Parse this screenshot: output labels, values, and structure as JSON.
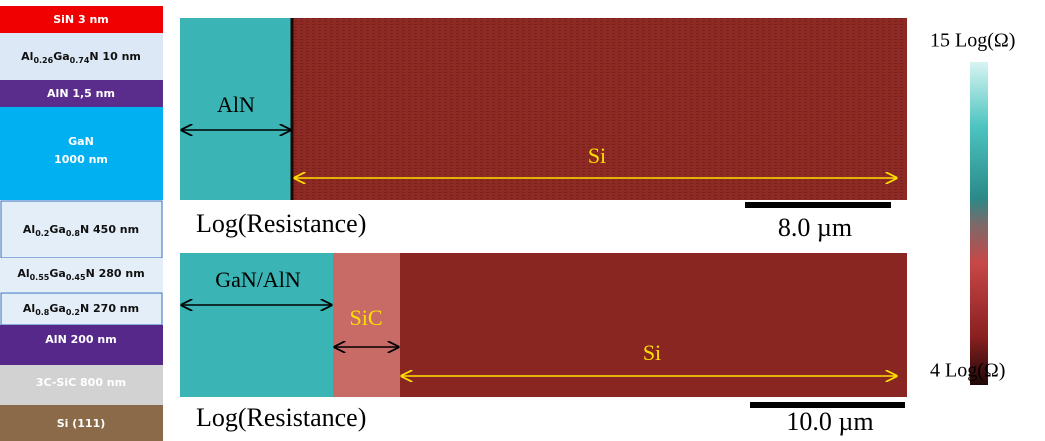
{
  "layers": [
    {
      "label": [
        "SiN 3 nm"
      ]
    },
    {
      "label": [
        "Al",
        "0.26",
        "Ga",
        "0.74",
        "N 10 nm"
      ]
    },
    {
      "label": [
        "AlN 1,5 nm"
      ]
    },
    {
      "label": [
        "GaN",
        "1000 nm"
      ]
    },
    {
      "label": [
        "Al",
        "0.2",
        "Ga",
        "0.8",
        "N 450 nm"
      ]
    },
    {
      "label": [
        "Al",
        "0.55",
        "Ga",
        "0.45",
        "N 280 nm"
      ]
    },
    {
      "label": [
        "Al",
        "0.8",
        "Ga",
        "0.2",
        "N 270 nm"
      ]
    },
    {
      "label": [
        "AlN 200 nm"
      ]
    },
    {
      "label": [
        "3C-SiC 800 nm"
      ]
    },
    {
      "label": [
        "Si (111)"
      ]
    }
  ],
  "maps": [
    {
      "regions": [
        "AlN",
        "Si"
      ],
      "caption": "Log(Resistance)",
      "scale_bar": "8.0 µm"
    },
    {
      "regions": [
        "GaN/AlN",
        "SiC",
        "Si"
      ],
      "caption": "Log(Resistance)",
      "scale_bar": "10.0 µm"
    }
  ],
  "colorbar": {
    "max_label": "15 Log(Ω)",
    "min_label": "4 Log(Ω)"
  }
}
